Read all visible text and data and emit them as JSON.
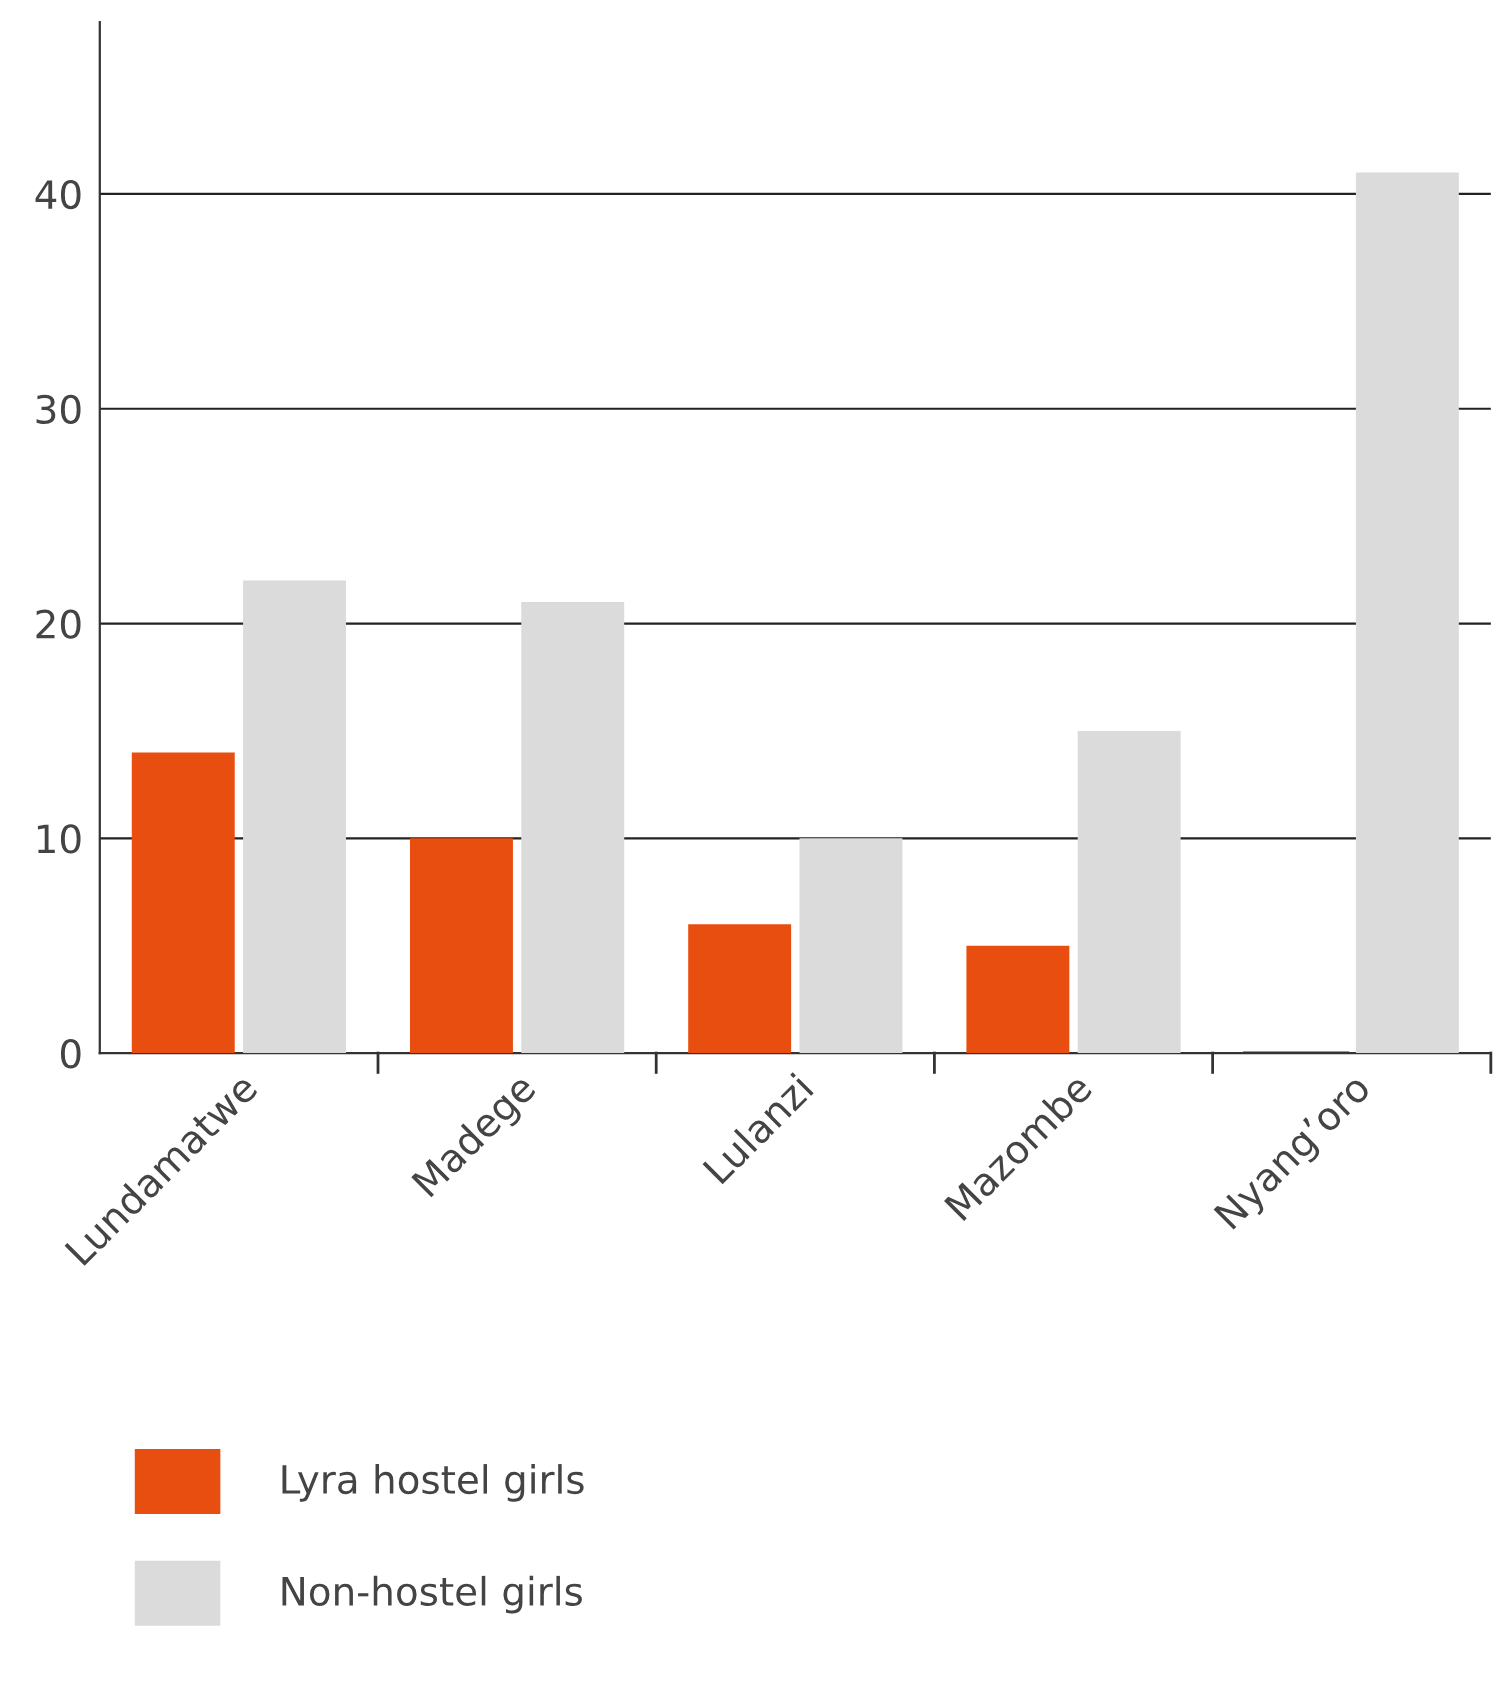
{
  "chart_data": {
    "type": "bar",
    "categories": [
      "Lundamatwe",
      "Madege",
      "Lulanzi",
      "Mazombe",
      "Nyang’oro"
    ],
    "series": [
      {
        "name": "Lyra hostel girls",
        "color": "#e84e0f",
        "values": [
          14,
          10,
          6,
          5,
          0
        ]
      },
      {
        "name": "Non-hostel girls",
        "color": "#dcdbdc",
        "values": [
          22,
          21,
          10,
          15,
          41
        ]
      }
    ],
    "ylim": [
      0,
      48
    ],
    "yticks": [
      0,
      10,
      20,
      30,
      40
    ],
    "grid": "y",
    "legend": "bottom"
  }
}
